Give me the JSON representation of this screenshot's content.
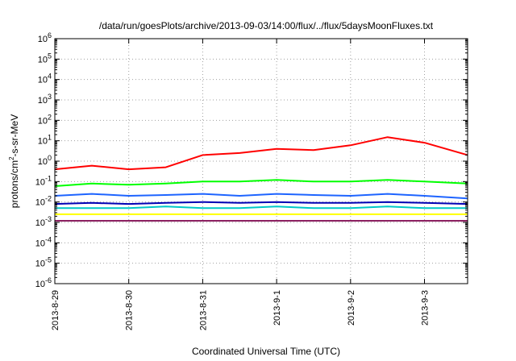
{
  "chart_data": {
    "type": "line",
    "title": "/data/run/goesPlots/archive/2013-09-03/14:00/flux/../flux/5daysMoonFluxes.txt",
    "xlabel": "Coordinated Universal Time (UTC)",
    "ylabel_parts": {
      "base": "protons/cm",
      "sup": "2",
      "rest": "-s-sr-MeV"
    },
    "x_scale": "time",
    "x_range": [
      "2013-08-29 00:00",
      "2013-09-03 14:00"
    ],
    "y_scale": "log",
    "y_range": [
      1e-06,
      1000000.0
    ],
    "y_ticks": [
      {
        "base": "10",
        "exp": "-6"
      },
      {
        "base": "10",
        "exp": "-5"
      },
      {
        "base": "10",
        "exp": "-4"
      },
      {
        "base": "10",
        "exp": "-3"
      },
      {
        "base": "10",
        "exp": "-2"
      },
      {
        "base": "10",
        "exp": "-1"
      },
      {
        "base": "10",
        "exp": "0"
      },
      {
        "base": "10",
        "exp": "1"
      },
      {
        "base": "10",
        "exp": "2"
      },
      {
        "base": "10",
        "exp": "3"
      },
      {
        "base": "10",
        "exp": "4"
      },
      {
        "base": "10",
        "exp": "5"
      },
      {
        "base": "10",
        "exp": "6"
      }
    ],
    "x_ticks": [
      "2013-8-29",
      "2013-8-30",
      "2013-8-31",
      "2013-9-1",
      "2013-9-2",
      "2013-9-3"
    ],
    "grid": true,
    "series": [
      {
        "color": "#ff0000",
        "x": [
          "2013-08-29 00:00",
          "2013-08-29 12:00",
          "2013-08-30 00:00",
          "2013-08-30 12:00",
          "2013-08-31 00:00",
          "2013-08-31 12:00",
          "2013-09-01 00:00",
          "2013-09-01 12:00",
          "2013-09-02 00:00",
          "2013-09-02 12:00",
          "2013-09-03 00:00",
          "2013-09-03 14:00"
        ],
        "y": [
          0.4,
          0.6,
          0.4,
          0.5,
          2,
          2.5,
          4,
          3.5,
          6,
          15,
          8,
          2
        ]
      },
      {
        "color": "#00ff00",
        "x": [
          "2013-08-29 00:00",
          "2013-08-29 12:00",
          "2013-08-30 00:00",
          "2013-08-30 12:00",
          "2013-08-31 00:00",
          "2013-08-31 12:00",
          "2013-09-01 00:00",
          "2013-09-01 12:00",
          "2013-09-02 00:00",
          "2013-09-02 12:00",
          "2013-09-03 00:00",
          "2013-09-03 14:00"
        ],
        "y": [
          0.06,
          0.08,
          0.07,
          0.08,
          0.1,
          0.1,
          0.12,
          0.1,
          0.1,
          0.12,
          0.1,
          0.08
        ]
      },
      {
        "color": "#1e64ff",
        "x": [
          "2013-08-29 00:00",
          "2013-08-29 12:00",
          "2013-08-30 00:00",
          "2013-08-30 12:00",
          "2013-08-31 00:00",
          "2013-08-31 12:00",
          "2013-09-01 00:00",
          "2013-09-01 12:00",
          "2013-09-02 00:00",
          "2013-09-02 12:00",
          "2013-09-03 00:00",
          "2013-09-03 14:00"
        ],
        "y": [
          0.02,
          0.025,
          0.02,
          0.022,
          0.025,
          0.02,
          0.025,
          0.022,
          0.02,
          0.025,
          0.02,
          0.015
        ]
      },
      {
        "color": "#0000b4",
        "x": [
          "2013-08-29 00:00",
          "2013-08-29 12:00",
          "2013-08-30 00:00",
          "2013-08-30 12:00",
          "2013-08-31 00:00",
          "2013-08-31 12:00",
          "2013-09-01 00:00",
          "2013-09-01 12:00",
          "2013-09-02 00:00",
          "2013-09-02 12:00",
          "2013-09-03 00:00",
          "2013-09-03 14:00"
        ],
        "y": [
          0.008,
          0.009,
          0.008,
          0.009,
          0.01,
          0.009,
          0.01,
          0.009,
          0.009,
          0.01,
          0.009,
          0.008
        ]
      },
      {
        "color": "#00c8c8",
        "x": [
          "2013-08-29 00:00",
          "2013-08-29 12:00",
          "2013-08-30 00:00",
          "2013-08-30 12:00",
          "2013-08-31 00:00",
          "2013-08-31 12:00",
          "2013-09-01 00:00",
          "2013-09-01 12:00",
          "2013-09-02 00:00",
          "2013-09-02 12:00",
          "2013-09-03 00:00",
          "2013-09-03 14:00"
        ],
        "y": [
          0.005,
          0.005,
          0.005,
          0.006,
          0.005,
          0.005,
          0.006,
          0.005,
          0.005,
          0.006,
          0.005,
          0.005
        ]
      },
      {
        "color": "#ffff00",
        "x": [
          "2013-08-29 00:00",
          "2013-08-29 12:00",
          "2013-08-30 00:00",
          "2013-08-30 12:00",
          "2013-08-31 00:00",
          "2013-08-31 12:00",
          "2013-09-01 00:00",
          "2013-09-01 12:00",
          "2013-09-02 00:00",
          "2013-09-02 12:00",
          "2013-09-03 00:00",
          "2013-09-03 14:00"
        ],
        "y": [
          0.0025,
          0.0025,
          0.0025,
          0.0025,
          0.0025,
          0.0025,
          0.0025,
          0.0025,
          0.0025,
          0.0025,
          0.0025,
          0.0025
        ]
      },
      {
        "color": "#8b2060",
        "x": [
          "2013-08-29 00:00",
          "2013-08-29 12:00",
          "2013-08-30 00:00",
          "2013-08-30 12:00",
          "2013-08-31 00:00",
          "2013-08-31 12:00",
          "2013-09-01 00:00",
          "2013-09-01 12:00",
          "2013-09-02 00:00",
          "2013-09-02 12:00",
          "2013-09-03 00:00",
          "2013-09-03 14:00"
        ],
        "y": [
          0.0012,
          0.0012,
          0.0012,
          0.0012,
          0.0012,
          0.0012,
          0.0012,
          0.0012,
          0.0012,
          0.0012,
          0.0012,
          0.0012
        ]
      }
    ]
  }
}
